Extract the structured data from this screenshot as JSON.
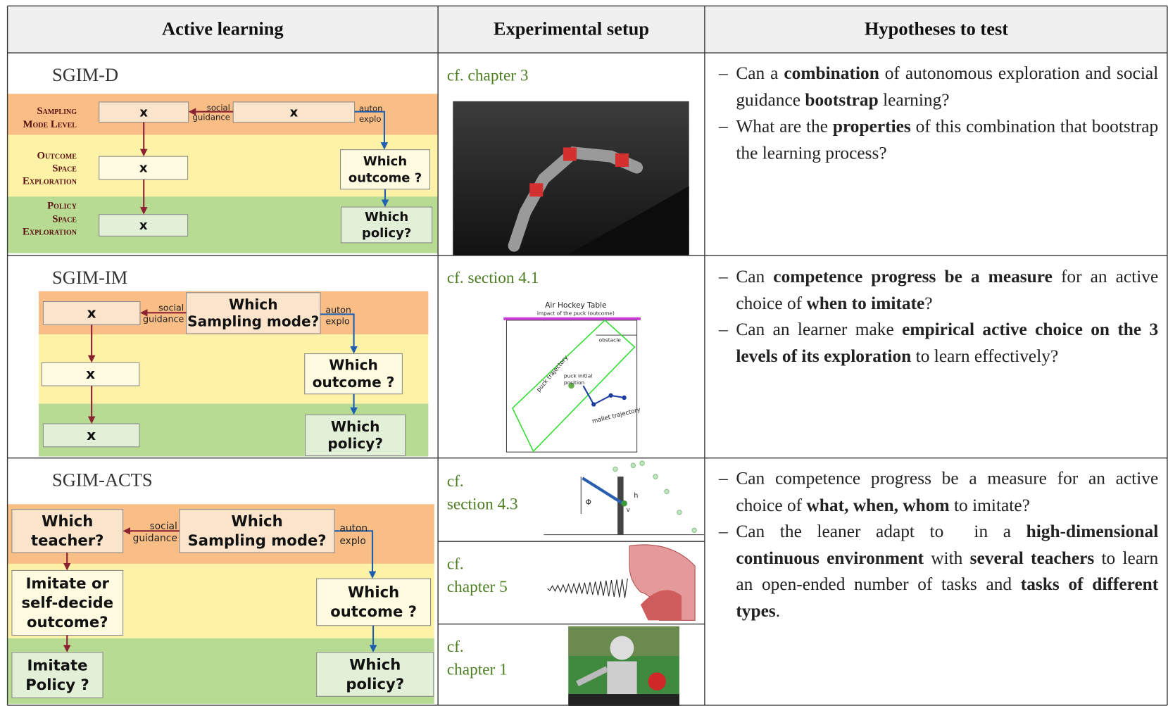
{
  "header": {
    "columns": [
      "Active learning",
      "Experimental setup",
      "Hypotheses to test"
    ]
  },
  "rows": [
    {
      "name": "SGIM-D",
      "diagram": {
        "levels": [
          [
            "Sampling",
            "Mode Level"
          ],
          [
            "Outcome",
            "Space",
            "Exploration"
          ],
          [
            "Policy",
            "Space",
            "Exploration"
          ]
        ],
        "boxes": [
          [
            "x"
          ],
          [
            "x"
          ],
          [
            "Which",
            "outcome ?"
          ],
          [
            "Which",
            "policy?"
          ],
          [
            "x"
          ],
          [
            "x"
          ]
        ],
        "social": [
          "social",
          "guidance"
        ],
        "auton": [
          "auton",
          "explo"
        ]
      },
      "setup": [
        {
          "ref": [
            "cf. chapter 3"
          ]
        }
      ],
      "hypotheses": [
        {
          "marker": "–",
          "segments": [
            {
              "text": "Can a ",
              "bold": false
            },
            {
              "text": "combination",
              "bold": true
            },
            {
              "text": " of autonomous exploration and social guidance ",
              "bold": false
            },
            {
              "text": "bootstrap",
              "bold": true
            },
            {
              "text": " learning?",
              "bold": false
            }
          ]
        },
        {
          "marker": "–",
          "segments": [
            {
              "text": "What are the ",
              "bold": false
            },
            {
              "text": "properties",
              "bold": true
            },
            {
              "text": " of this combination that bootstrap the learning process?",
              "bold": false
            }
          ]
        }
      ]
    },
    {
      "name": "SGIM-IM",
      "diagram": {
        "boxes": [
          [
            "x"
          ],
          [
            "Which",
            "Sampling mode?"
          ],
          [
            "Which",
            "outcome ?"
          ],
          [
            "Which",
            "policy?"
          ],
          [
            "x"
          ],
          [
            "x"
          ]
        ],
        "social": [
          "social",
          "guidance"
        ],
        "auton": [
          "auton",
          "explo"
        ]
      },
      "setup": [
        {
          "ref": [
            "cf. section 4.1"
          ],
          "figure": {
            "title": "Air Hockey Table",
            "impact": "impact of the puck (outcome)",
            "obstacle": "obstacle",
            "puck": "puck trajectory",
            "initial": [
              "puck initial",
              "position"
            ],
            "mallet": "mallet trajectory"
          }
        }
      ],
      "hypotheses": [
        {
          "marker": "–",
          "segments": [
            {
              "text": "Can ",
              "bold": false
            },
            {
              "text": "competence progress be a measure",
              "bold": true
            },
            {
              "text": " for an active choice of ",
              "bold": false
            },
            {
              "text": "when to imitate",
              "bold": true
            },
            {
              "text": "?",
              "bold": false
            }
          ]
        },
        {
          "marker": "–",
          "segments": [
            {
              "text": "Can an learner make ",
              "bold": false
            },
            {
              "text": "empirical active choice on the 3 levels of its exploration",
              "bold": true
            },
            {
              "text": " to learn effectively?",
              "bold": false
            }
          ]
        }
      ]
    },
    {
      "name": "SGIM-ACTS",
      "diagram": {
        "boxes": [
          [
            "Which",
            "teacher?"
          ],
          [
            "Which",
            "Sampling mode?"
          ],
          [
            "Which",
            "outcome ?"
          ],
          [
            "Which",
            "policy?"
          ],
          [
            "Imitate or",
            "self-decide",
            "outcome?"
          ],
          [
            "Imitate",
            "Policy ?"
          ]
        ],
        "social": [
          "social",
          "guidance"
        ],
        "auton": [
          "auton",
          "explo"
        ]
      },
      "setup": [
        {
          "ref": [
            "cf.",
            "section 4.3"
          ],
          "figure": {
            "labels": [
              "Φ",
              "v",
              "h"
            ]
          }
        },
        {
          "ref": [
            "cf.",
            "chapter 5"
          ]
        },
        {
          "ref": [
            "cf.",
            "chapter 1"
          ]
        }
      ],
      "hypotheses": [
        {
          "marker": "–",
          "segments": [
            {
              "text": "Can competence progress be a measure for an active choice of ",
              "bold": false
            },
            {
              "text": "what, when, whom",
              "bold": true
            },
            {
              "text": " to imitate?",
              "bold": false
            }
          ]
        },
        {
          "marker": "–",
          "segments": [
            {
              "text": "Can the leaner adapt to  in a ",
              "bold": false
            },
            {
              "text": "high-dimensional continuous environment",
              "bold": true
            },
            {
              "text": " with ",
              "bold": false
            },
            {
              "text": "several teachers",
              "bold": true
            },
            {
              "text": " to learn an open-ended number of tasks and ",
              "bold": false
            },
            {
              "text": "tasks of different types",
              "bold": true
            },
            {
              "text": ".",
              "bold": false
            }
          ]
        }
      ]
    }
  ]
}
